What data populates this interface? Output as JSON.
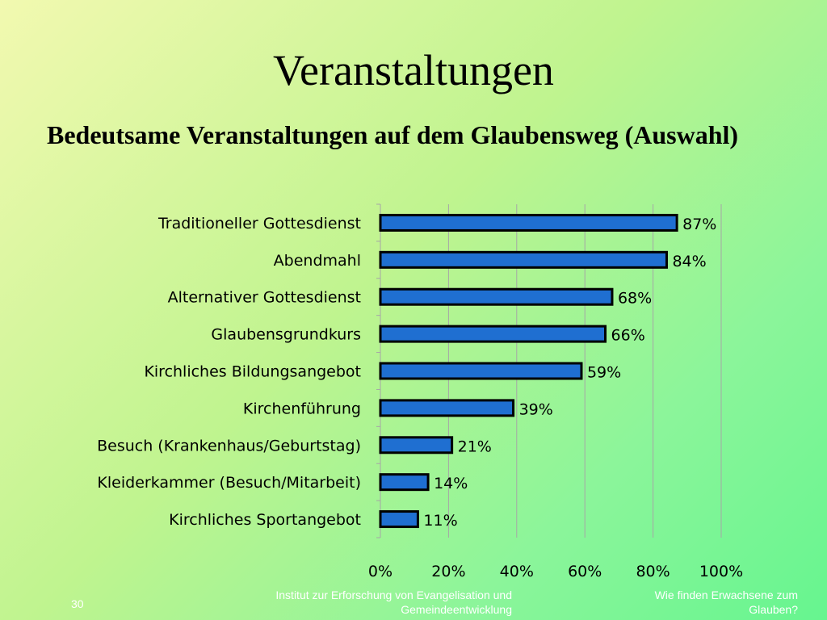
{
  "slide": {
    "title": "Veranstaltungen",
    "subtitle": "Bedeutsame Veranstaltungen auf dem Glaubensweg (Auswahl)"
  },
  "footer": {
    "page_number": "30",
    "institute": "Institut zur Erforschung von Evangelisation und Gemeindeentwicklung",
    "right_text": "Wie finden Erwachsene zum Glauben?"
  },
  "chart_data": {
    "type": "bar",
    "orientation": "horizontal",
    "title": "",
    "xlabel": "",
    "ylabel": "",
    "categories": [
      "Traditioneller Gottesdienst",
      "Abendmahl",
      "Alternativer Gottesdienst",
      "Glaubensgrundkurs",
      "Kirchliches Bildungsangebot",
      "Kirchenführung",
      "Besuch (Krankenhaus/Geburtstag)",
      "Kleiderkammer (Besuch/Mitarbeit)",
      "Kirchliches Sportangebot"
    ],
    "values": [
      87,
      84,
      68,
      66,
      59,
      39,
      21,
      14,
      11
    ],
    "value_labels": [
      "87%",
      "84%",
      "68%",
      "66%",
      "59%",
      "39%",
      "21%",
      "14%",
      "11%"
    ],
    "xlim": [
      0,
      100
    ],
    "x_ticks": [
      "0%",
      "20%",
      "40%",
      "60%",
      "80%",
      "100%"
    ],
    "grid": true,
    "legend": "none",
    "colors": {
      "bar_fill": "#1f6fd1",
      "bar_stroke": "#000000",
      "grid": "#a6a6a6",
      "text": "#000000"
    }
  }
}
